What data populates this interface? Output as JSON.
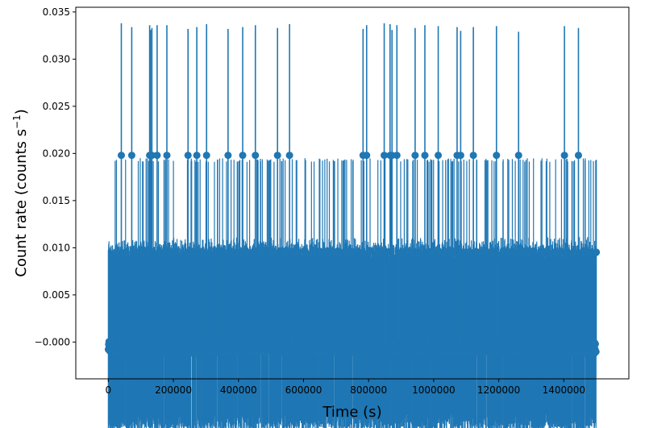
{
  "chart_data": {
    "type": "scatter",
    "title": "",
    "xlabel": "Time (s)",
    "ylabel_main": "Count rate (counts s",
    "ylabel_sup": "−1",
    "ylabel_close": ")",
    "xlim": [
      -100000,
      1600000
    ],
    "ylim": [
      -0.0039,
      0.0355
    ],
    "xticks": [
      {
        "value": 0,
        "label": "0"
      },
      {
        "value": 200000,
        "label": "200000"
      },
      {
        "value": 400000,
        "label": "400000"
      },
      {
        "value": 600000,
        "label": "600000"
      },
      {
        "value": 800000,
        "label": "800000"
      },
      {
        "value": 1000000,
        "label": "1000000"
      },
      {
        "value": 1200000,
        "label": "1200000"
      },
      {
        "value": 1400000,
        "label": "1400000"
      }
    ],
    "yticks": [
      {
        "value": -0.0,
        "label": "−0.000"
      },
      {
        "value": 0.005,
        "label": "0.005"
      },
      {
        "value": 0.01,
        "label": "0.010"
      },
      {
        "value": 0.015,
        "label": "0.015"
      },
      {
        "value": 0.02,
        "label": "0.020"
      },
      {
        "value": 0.025,
        "label": "0.025"
      },
      {
        "value": 0.03,
        "label": "0.030"
      },
      {
        "value": 0.035,
        "label": "0.035"
      }
    ],
    "series_color": "#1f77b4",
    "time_range": [
      0,
      1500000
    ],
    "count_levels": [
      -0.0005,
      0.0095
    ],
    "error_bar_halfwidth_typical": 0.0098,
    "spikes": [
      {
        "x": 40000,
        "y": 0.0338
      },
      {
        "x": 72000,
        "y": 0.0334
      },
      {
        "x": 127000,
        "y": 0.0336
      },
      {
        "x": 130000,
        "y": 0.0331
      },
      {
        "x": 134000,
        "y": 0.0333
      },
      {
        "x": 150000,
        "y": 0.0336
      },
      {
        "x": 180000,
        "y": 0.0336
      },
      {
        "x": 245000,
        "y": 0.0332
      },
      {
        "x": 272000,
        "y": 0.0334
      },
      {
        "x": 302000,
        "y": 0.0337
      },
      {
        "x": 368000,
        "y": 0.0332
      },
      {
        "x": 413000,
        "y": 0.0334
      },
      {
        "x": 452000,
        "y": 0.0336
      },
      {
        "x": 520000,
        "y": 0.0333
      },
      {
        "x": 557000,
        "y": 0.0337
      },
      {
        "x": 783000,
        "y": 0.0332
      },
      {
        "x": 794000,
        "y": 0.0336
      },
      {
        "x": 848000,
        "y": 0.0338
      },
      {
        "x": 866000,
        "y": 0.0337
      },
      {
        "x": 872000,
        "y": 0.0331
      },
      {
        "x": 887000,
        "y": 0.0336
      },
      {
        "x": 943000,
        "y": 0.0333
      },
      {
        "x": 973000,
        "y": 0.0336
      },
      {
        "x": 1014000,
        "y": 0.0335
      },
      {
        "x": 1072000,
        "y": 0.0334
      },
      {
        "x": 1083000,
        "y": 0.033
      },
      {
        "x": 1122000,
        "y": 0.0334
      },
      {
        "x": 1193000,
        "y": 0.0335
      },
      {
        "x": 1261000,
        "y": 0.0329
      },
      {
        "x": 1402000,
        "y": 0.0335
      },
      {
        "x": 1445000,
        "y": 0.0333
      }
    ]
  }
}
